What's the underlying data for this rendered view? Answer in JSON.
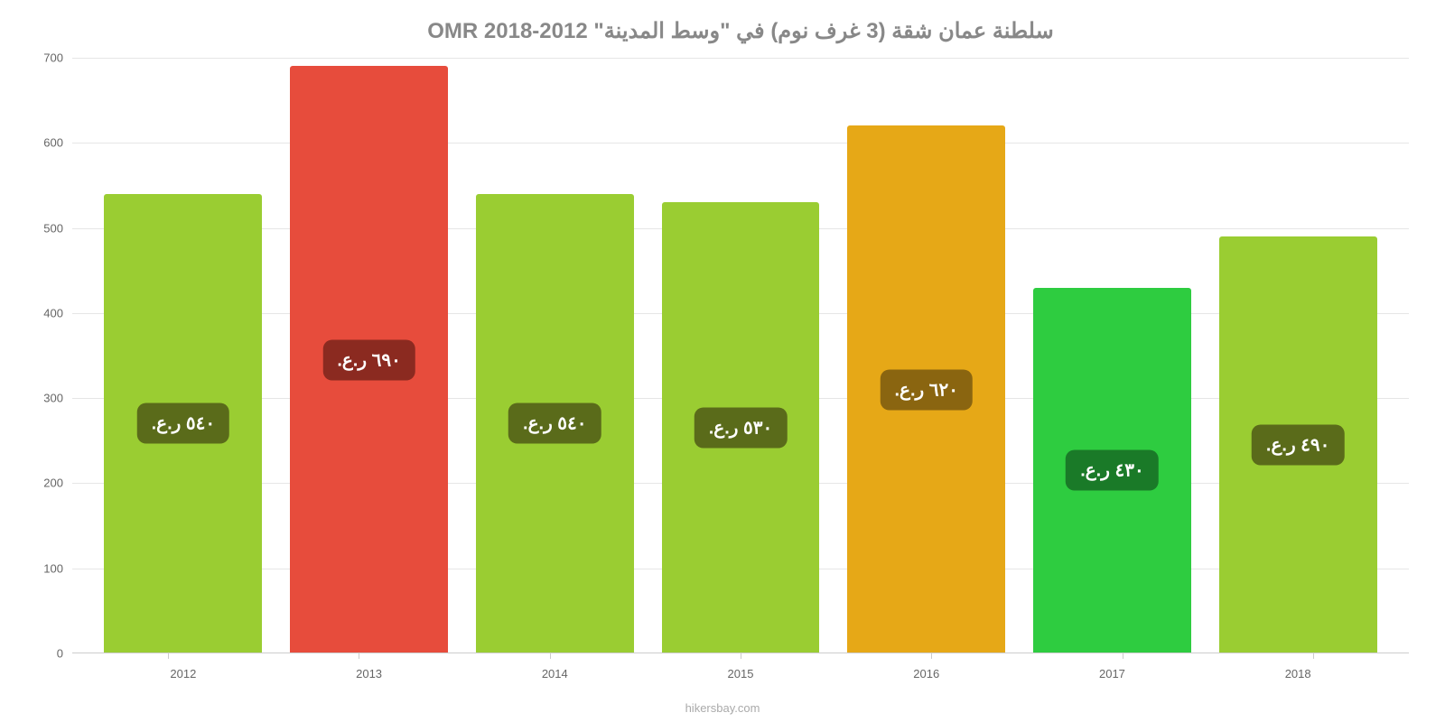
{
  "chart": {
    "type": "bar",
    "title": "سلطنة عمان شقة (3 غرف نوم) في \"وسط المدينة\" OMR 2018-2012",
    "title_fontsize": 24,
    "title_color": "#888888",
    "background_color": "#ffffff",
    "grid_color": "#e6e6e6",
    "axis_text_color": "#666666",
    "categories": [
      "2012",
      "2013",
      "2014",
      "2015",
      "2016",
      "2017",
      "2018"
    ],
    "values": [
      540,
      690,
      540,
      530,
      620,
      430,
      490
    ],
    "bar_labels": [
      "٥٤٠ ر.ع.",
      "٦٩٠ ر.ع.",
      "٥٤٠ ر.ع.",
      "٥٣٠ ر.ع.",
      "٦٢٠ ر.ع.",
      "٤٣٠ ر.ع.",
      "٤٩٠ ر.ع."
    ],
    "bar_colors": [
      "#9acd32",
      "#e74c3c",
      "#9acd32",
      "#9acd32",
      "#e6a817",
      "#2ecc40",
      "#9acd32"
    ],
    "label_bg_colors": [
      "#5a6b1a",
      "#8b2a20",
      "#5a6b1a",
      "#5a6b1a",
      "#8a6510",
      "#1a7a28",
      "#5a6b1a"
    ],
    "ylim": [
      0,
      700
    ],
    "ytick_step": 100,
    "yticks": [
      0,
      100,
      200,
      300,
      400,
      500,
      600,
      700
    ],
    "bar_width_pct": 85,
    "label_fontsize": 20,
    "axis_fontsize": 13,
    "attribution": "hikersbay.com",
    "attribution_color": "#aaaaaa"
  }
}
